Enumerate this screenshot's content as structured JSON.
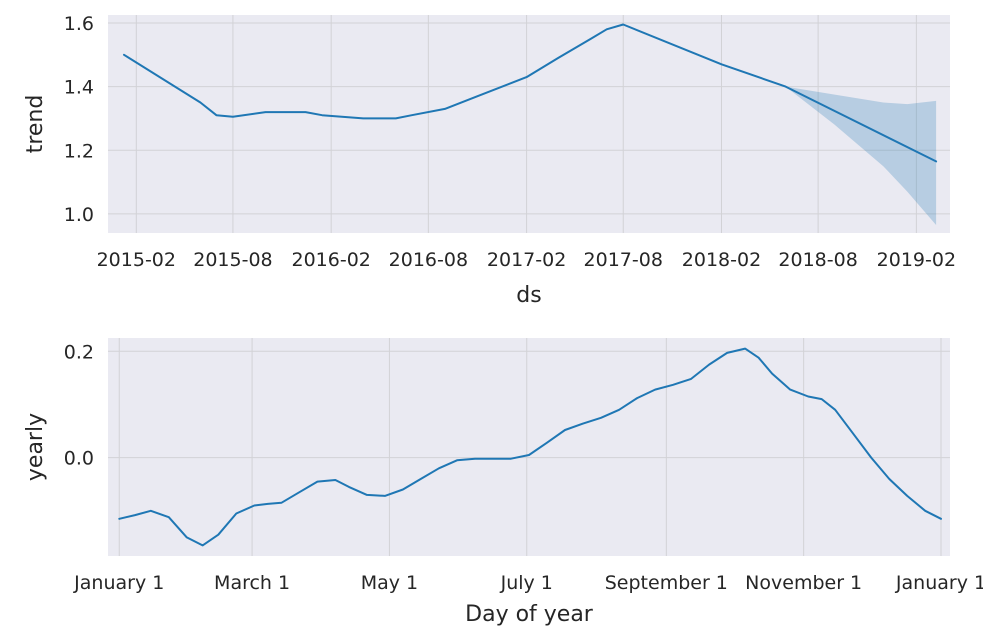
{
  "colors": {
    "line": "#1f77b4",
    "band": "#1f77b4",
    "background": "#eaeaf2",
    "grid": "#d2d2d6"
  },
  "chart_data": [
    {
      "type": "line",
      "ylabel": "trend",
      "xlabel": "ds",
      "grid": true,
      "ylim": [
        0.94,
        1.625
      ],
      "xlim": [
        "2014-12-10",
        "2019-04-05"
      ],
      "x_tick_labels": [
        "2015-02",
        "2015-08",
        "2016-02",
        "2016-08",
        "2017-02",
        "2017-08",
        "2018-02",
        "2018-08",
        "2019-02"
      ],
      "x_tick_dates": [
        "2015-02-01",
        "2015-08-01",
        "2016-02-01",
        "2016-08-01",
        "2017-02-01",
        "2017-08-01",
        "2018-02-01",
        "2018-08-01",
        "2019-02-01"
      ],
      "y_tick_labels": [
        "1.0",
        "1.2",
        "1.4",
        "1.6"
      ],
      "y_ticks": [
        1.0,
        1.2,
        1.4,
        1.6
      ],
      "series": [
        {
          "x": [
            "2015-01-09",
            "2015-06-01",
            "2015-07-01",
            "2015-08-01",
            "2015-10-01",
            "2015-12-15",
            "2016-01-15",
            "2016-04-01",
            "2016-06-01",
            "2016-07-01",
            "2016-09-01",
            "2016-11-01",
            "2017-02-01",
            "2017-04-01",
            "2017-06-01",
            "2017-07-01",
            "2017-08-01",
            "2018-02-01",
            "2018-06-01",
            "2019-03-10"
          ],
          "values": [
            1.5,
            1.35,
            1.31,
            1.305,
            1.32,
            1.32,
            1.31,
            1.3,
            1.3,
            1.31,
            1.33,
            1.37,
            1.43,
            1.49,
            1.55,
            1.58,
            1.595,
            1.47,
            1.4,
            1.165
          ]
        }
      ],
      "uncertainty_band": {
        "x": [
          "2018-06-01",
          "2018-09-01",
          "2018-12-01",
          "2019-01-15",
          "2019-03-10"
        ],
        "upper": [
          1.4,
          1.375,
          1.35,
          1.345,
          1.355
        ],
        "lower": [
          1.4,
          1.28,
          1.15,
          1.07,
          0.965
        ]
      }
    },
    {
      "type": "line",
      "ylabel": "yearly",
      "xlabel": "Day of year",
      "grid": true,
      "ylim": [
        -0.185,
        0.225
      ],
      "xlim": [
        -5,
        369
      ],
      "x_tick_labels": [
        "January 1",
        "March 1",
        "May 1",
        "July 1",
        "September 1",
        "November 1",
        "January 1"
      ],
      "x_ticks": [
        0,
        59,
        120,
        181,
        243,
        304,
        365
      ],
      "y_tick_labels": [
        "0.0",
        "0.2"
      ],
      "y_ticks": [
        0.0,
        0.2
      ],
      "series": [
        {
          "x": [
            0,
            7,
            14,
            22,
            30,
            37,
            44,
            52,
            60,
            66,
            72,
            80,
            88,
            96,
            102,
            110,
            118,
            126,
            134,
            142,
            150,
            158,
            166,
            174,
            182,
            190,
            198,
            206,
            214,
            222,
            230,
            238,
            246,
            254,
            262,
            270,
            278,
            284,
            290,
            298,
            306,
            312,
            318,
            326,
            334,
            342,
            350,
            358,
            365
          ],
          "values": [
            -0.115,
            -0.108,
            -0.1,
            -0.112,
            -0.15,
            -0.165,
            -0.145,
            -0.105,
            -0.09,
            -0.087,
            -0.085,
            -0.065,
            -0.045,
            -0.042,
            -0.055,
            -0.07,
            -0.072,
            -0.06,
            -0.04,
            -0.02,
            -0.005,
            -0.002,
            -0.002,
            -0.002,
            0.005,
            0.028,
            0.052,
            0.064,
            0.075,
            0.09,
            0.112,
            0.128,
            0.137,
            0.148,
            0.175,
            0.197,
            0.205,
            0.188,
            0.158,
            0.128,
            0.115,
            0.11,
            0.09,
            0.045,
            0.0,
            -0.04,
            -0.072,
            -0.1,
            -0.115
          ]
        }
      ]
    }
  ]
}
